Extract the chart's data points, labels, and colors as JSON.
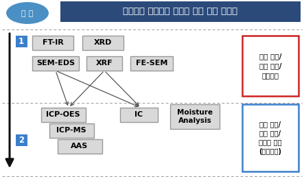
{
  "title": "단일성분 무기물질 확인을 위한 분석 체계도",
  "title_bg": "#2B4A7A",
  "title_fg": "#FFFFFF",
  "sample_label": "시 료",
  "sample_bg": "#4A90C4",
  "section_bg": "#3B7FCC",
  "section_fg": "#FFFFFF",
  "box_bg": "#D9D9D9",
  "box_border": "#999999",
  "right_box1_text": "구조 확인/\n원소 정보/\n입자정보",
  "right_box1_border": "#CC2222",
  "right_box2_text": "성분 확인/\n순도 확인/\n물순물 확인\n(정량분석)",
  "right_box2_border": "#3B7FCC",
  "fig_bg": "#FFFFFF",
  "dashed_color": "#999999",
  "arrow_color": "#555555",
  "big_arrow_color": "#111111"
}
